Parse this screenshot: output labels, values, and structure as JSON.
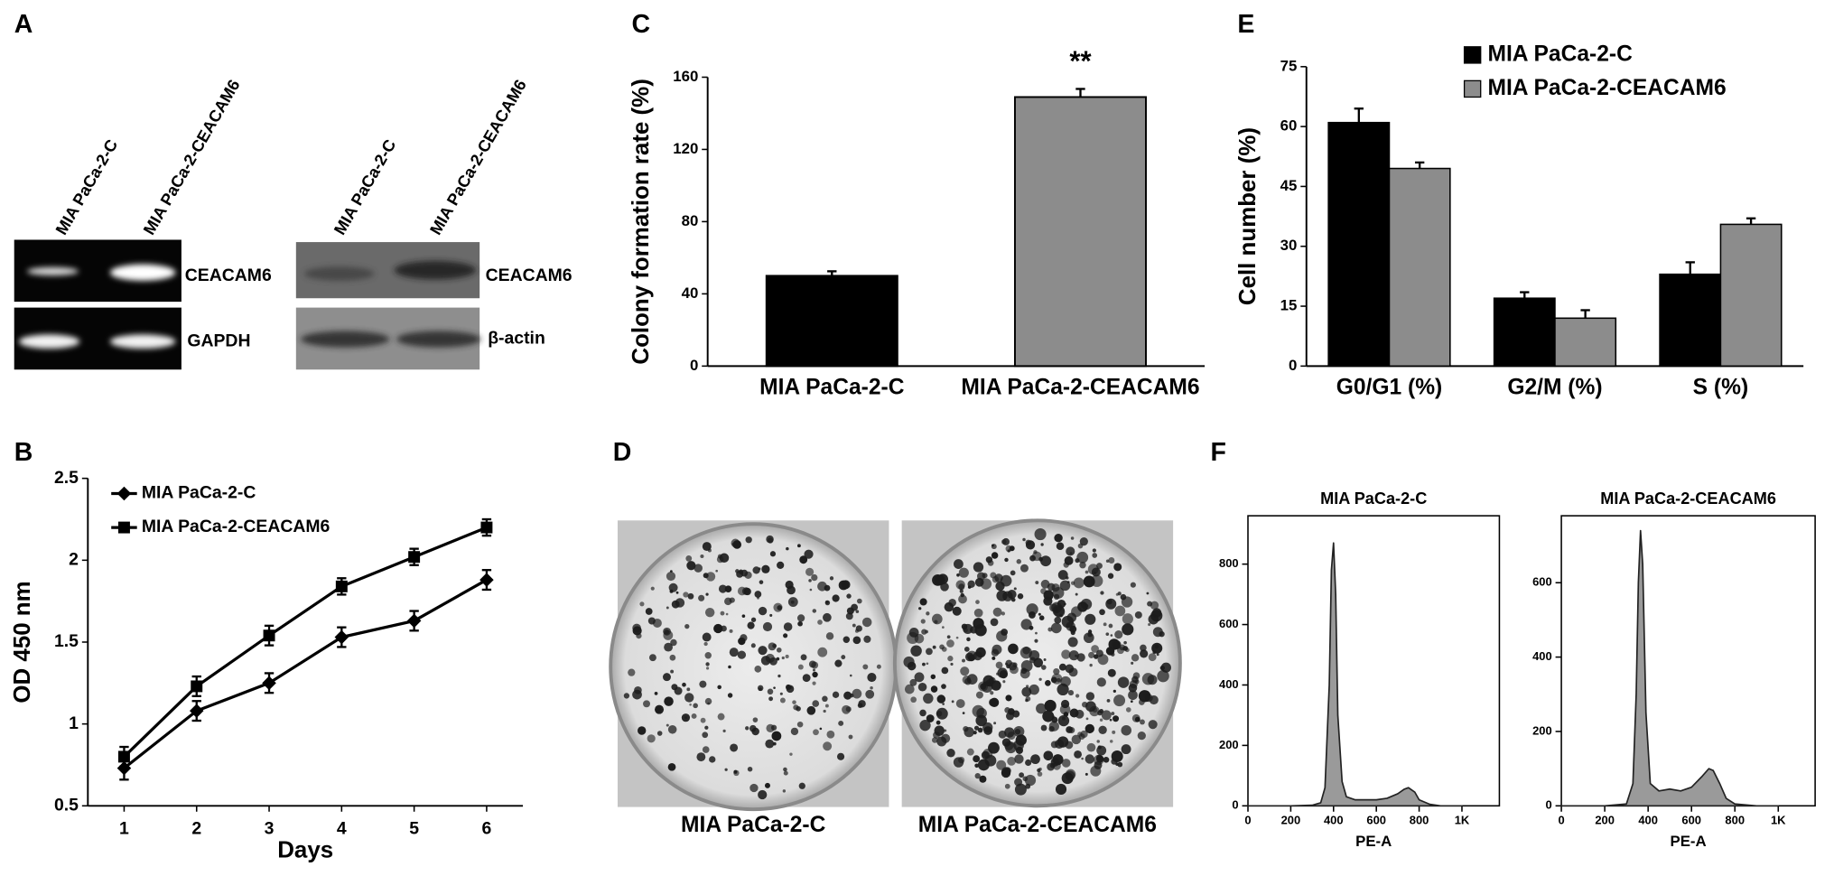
{
  "panel_labels": [
    "A",
    "B",
    "C",
    "D",
    "E",
    "F"
  ],
  "blots": {
    "rt_pcr": {
      "lanes": [
        "MIA PaCa-2-C",
        "MIA PaCa-2-CEACAM6"
      ],
      "bands": [
        "CEACAM6",
        "GAPDH"
      ]
    },
    "western": {
      "lanes": [
        "MIA PaCa-2-C",
        "MIA PaCa-2-CEACAM6"
      ],
      "bands": [
        "CEACAM6",
        "β-actin"
      ]
    }
  },
  "colony_images": {
    "captions": [
      "MIA PaCa-2-C",
      "MIA PaCa-2-CEACAM6"
    ]
  },
  "chart_data": [
    {
      "type": "line",
      "x": [
        1,
        2,
        3,
        4,
        5,
        6
      ],
      "xlim": [
        0.5,
        6.5
      ],
      "xticks": [
        1,
        2,
        3,
        4,
        5,
        6
      ],
      "ylim": [
        0.5,
        2.5
      ],
      "yticks": [
        0.5,
        1,
        1.5,
        2,
        2.5
      ],
      "xlabel": "Days",
      "ylabel": "OD 450 nm",
      "legend": "upper left",
      "series": [
        {
          "name": "MIA PaCa-2-C",
          "color": "#000000",
          "marker": "diamond",
          "values": [
            0.73,
            1.08,
            1.25,
            1.53,
            1.63,
            1.88
          ],
          "errors": [
            0.07,
            0.06,
            0.06,
            0.06,
            0.06,
            0.06
          ]
        },
        {
          "name": "MIA PaCa-2-CEACAM6",
          "color": "#000000",
          "marker": "square",
          "values": [
            0.8,
            1.23,
            1.54,
            1.84,
            2.02,
            2.2
          ],
          "errors": [
            0.06,
            0.06,
            0.06,
            0.05,
            0.05,
            0.05
          ]
        }
      ]
    },
    {
      "type": "bar",
      "categories": [
        "MIA PaCa-2-C",
        "MIA PaCa-2-CEACAM6"
      ],
      "values": [
        50,
        149
      ],
      "errors": [
        2.5,
        4.5
      ],
      "colors": [
        "#000000",
        "#8c8c8c"
      ],
      "ylim": [
        0,
        160
      ],
      "yticks": [
        0,
        40,
        80,
        120,
        160
      ],
      "ylabel": "Colony formation rate (%)",
      "annotation": "**"
    },
    {
      "type": "grouped_bar",
      "categories": [
        "G0/G1 (%)",
        "G2/M (%)",
        "S (%)"
      ],
      "ylim": [
        0,
        75
      ],
      "yticks": [
        0,
        15,
        30,
        45,
        60,
        75
      ],
      "ylabel": "Cell number (%)",
      "legend": "upper right",
      "series": [
        {
          "name": "MIA PaCa-2-C",
          "color": "#000000",
          "values": [
            61,
            17,
            23
          ],
          "errors": [
            3.5,
            1.5,
            3
          ]
        },
        {
          "name": "MIA PaCa-2-CEACAM6",
          "color": "#8c8c8c",
          "values": [
            49.5,
            12,
            35.5
          ],
          "errors": [
            1.5,
            2,
            1.5
          ]
        }
      ]
    },
    {
      "type": "area",
      "title": "MIA PaCa-2-C",
      "xlabel": "PE-A",
      "color": "#9a9a9a",
      "x": [
        0,
        100,
        200,
        300,
        340,
        360,
        380,
        390,
        400,
        410,
        420,
        440,
        460,
        500,
        550,
        600,
        650,
        700,
        730,
        750,
        780,
        800,
        850,
        900,
        1000
      ],
      "values": [
        0,
        0,
        0,
        2,
        10,
        60,
        400,
        780,
        870,
        700,
        300,
        80,
        30,
        20,
        20,
        20,
        25,
        40,
        55,
        60,
        45,
        20,
        5,
        0,
        0
      ],
      "xlim": [
        0,
        1175
      ],
      "xticks": [
        0,
        200,
        400,
        600,
        800,
        {
          "value": 1000,
          "label": "1K"
        }
      ],
      "ylim": [
        0,
        960
      ],
      "yticks": [
        0,
        200,
        400,
        600,
        800
      ]
    },
    {
      "type": "area",
      "title": "MIA PaCa-2-CEACAM6",
      "xlabel": "PE-A",
      "color": "#9a9a9a",
      "x": [
        0,
        100,
        200,
        300,
        330,
        345,
        355,
        365,
        375,
        390,
        410,
        450,
        500,
        550,
        600,
        650,
        680,
        700,
        730,
        760,
        800,
        900,
        1000
      ],
      "values": [
        0,
        0,
        0,
        5,
        60,
        300,
        600,
        740,
        650,
        250,
        60,
        40,
        45,
        40,
        50,
        80,
        100,
        95,
        60,
        20,
        5,
        0,
        0
      ],
      "xlim": [
        0,
        1170
      ],
      "xticks": [
        0,
        200,
        400,
        600,
        800,
        {
          "value": 1000,
          "label": "1K"
        }
      ],
      "ylim": [
        0,
        780
      ],
      "yticks": [
        0,
        200,
        400,
        600
      ]
    }
  ]
}
